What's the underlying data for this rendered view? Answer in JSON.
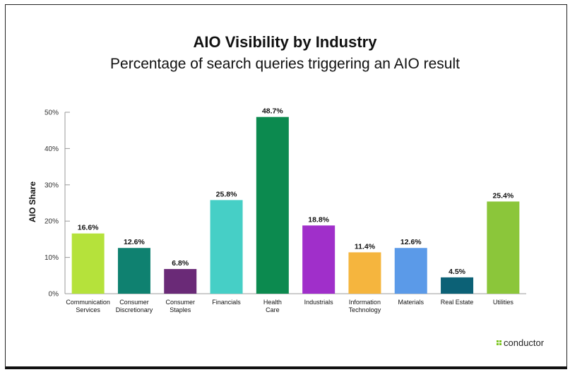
{
  "chart_data": {
    "type": "bar",
    "title": "AIO Visibility by Industry",
    "subtitle": "Percentage of search queries triggering an AIO result",
    "xlabel": "",
    "ylabel": "AIO Share",
    "ylim": [
      0,
      50
    ],
    "yticks": [
      "0%",
      "10%",
      "20%",
      "30%",
      "40%",
      "50%"
    ],
    "ytick_values": [
      0,
      10,
      20,
      30,
      40,
      50
    ],
    "grid": false,
    "categories": [
      [
        "Communication",
        "Services"
      ],
      [
        "Consumer",
        "Discretionary"
      ],
      [
        "Consumer",
        "Staples"
      ],
      [
        "Financials"
      ],
      [
        "Health",
        "Care"
      ],
      [
        "Industrials"
      ],
      [
        "Information",
        "Technology"
      ],
      [
        "Materials"
      ],
      [
        "Real Estate"
      ],
      [
        "Utilities"
      ]
    ],
    "values": [
      16.6,
      12.6,
      6.8,
      25.8,
      48.7,
      18.8,
      11.4,
      12.6,
      4.5,
      25.4
    ],
    "value_labels": [
      "16.6%",
      "12.6%",
      "6.8%",
      "25.8%",
      "48.7%",
      "18.8%",
      "11.4%",
      "12.6%",
      "4.5%",
      "25.4%"
    ],
    "colors": [
      "#b5e23b",
      "#0f8170",
      "#6a2a77",
      "#46cfc6",
      "#0c8a4f",
      "#a02fca",
      "#f5b53e",
      "#5b9ae8",
      "#0c6176",
      "#8bc63a"
    ]
  },
  "brand": {
    "name": "conductor",
    "color": "#7cc520"
  }
}
